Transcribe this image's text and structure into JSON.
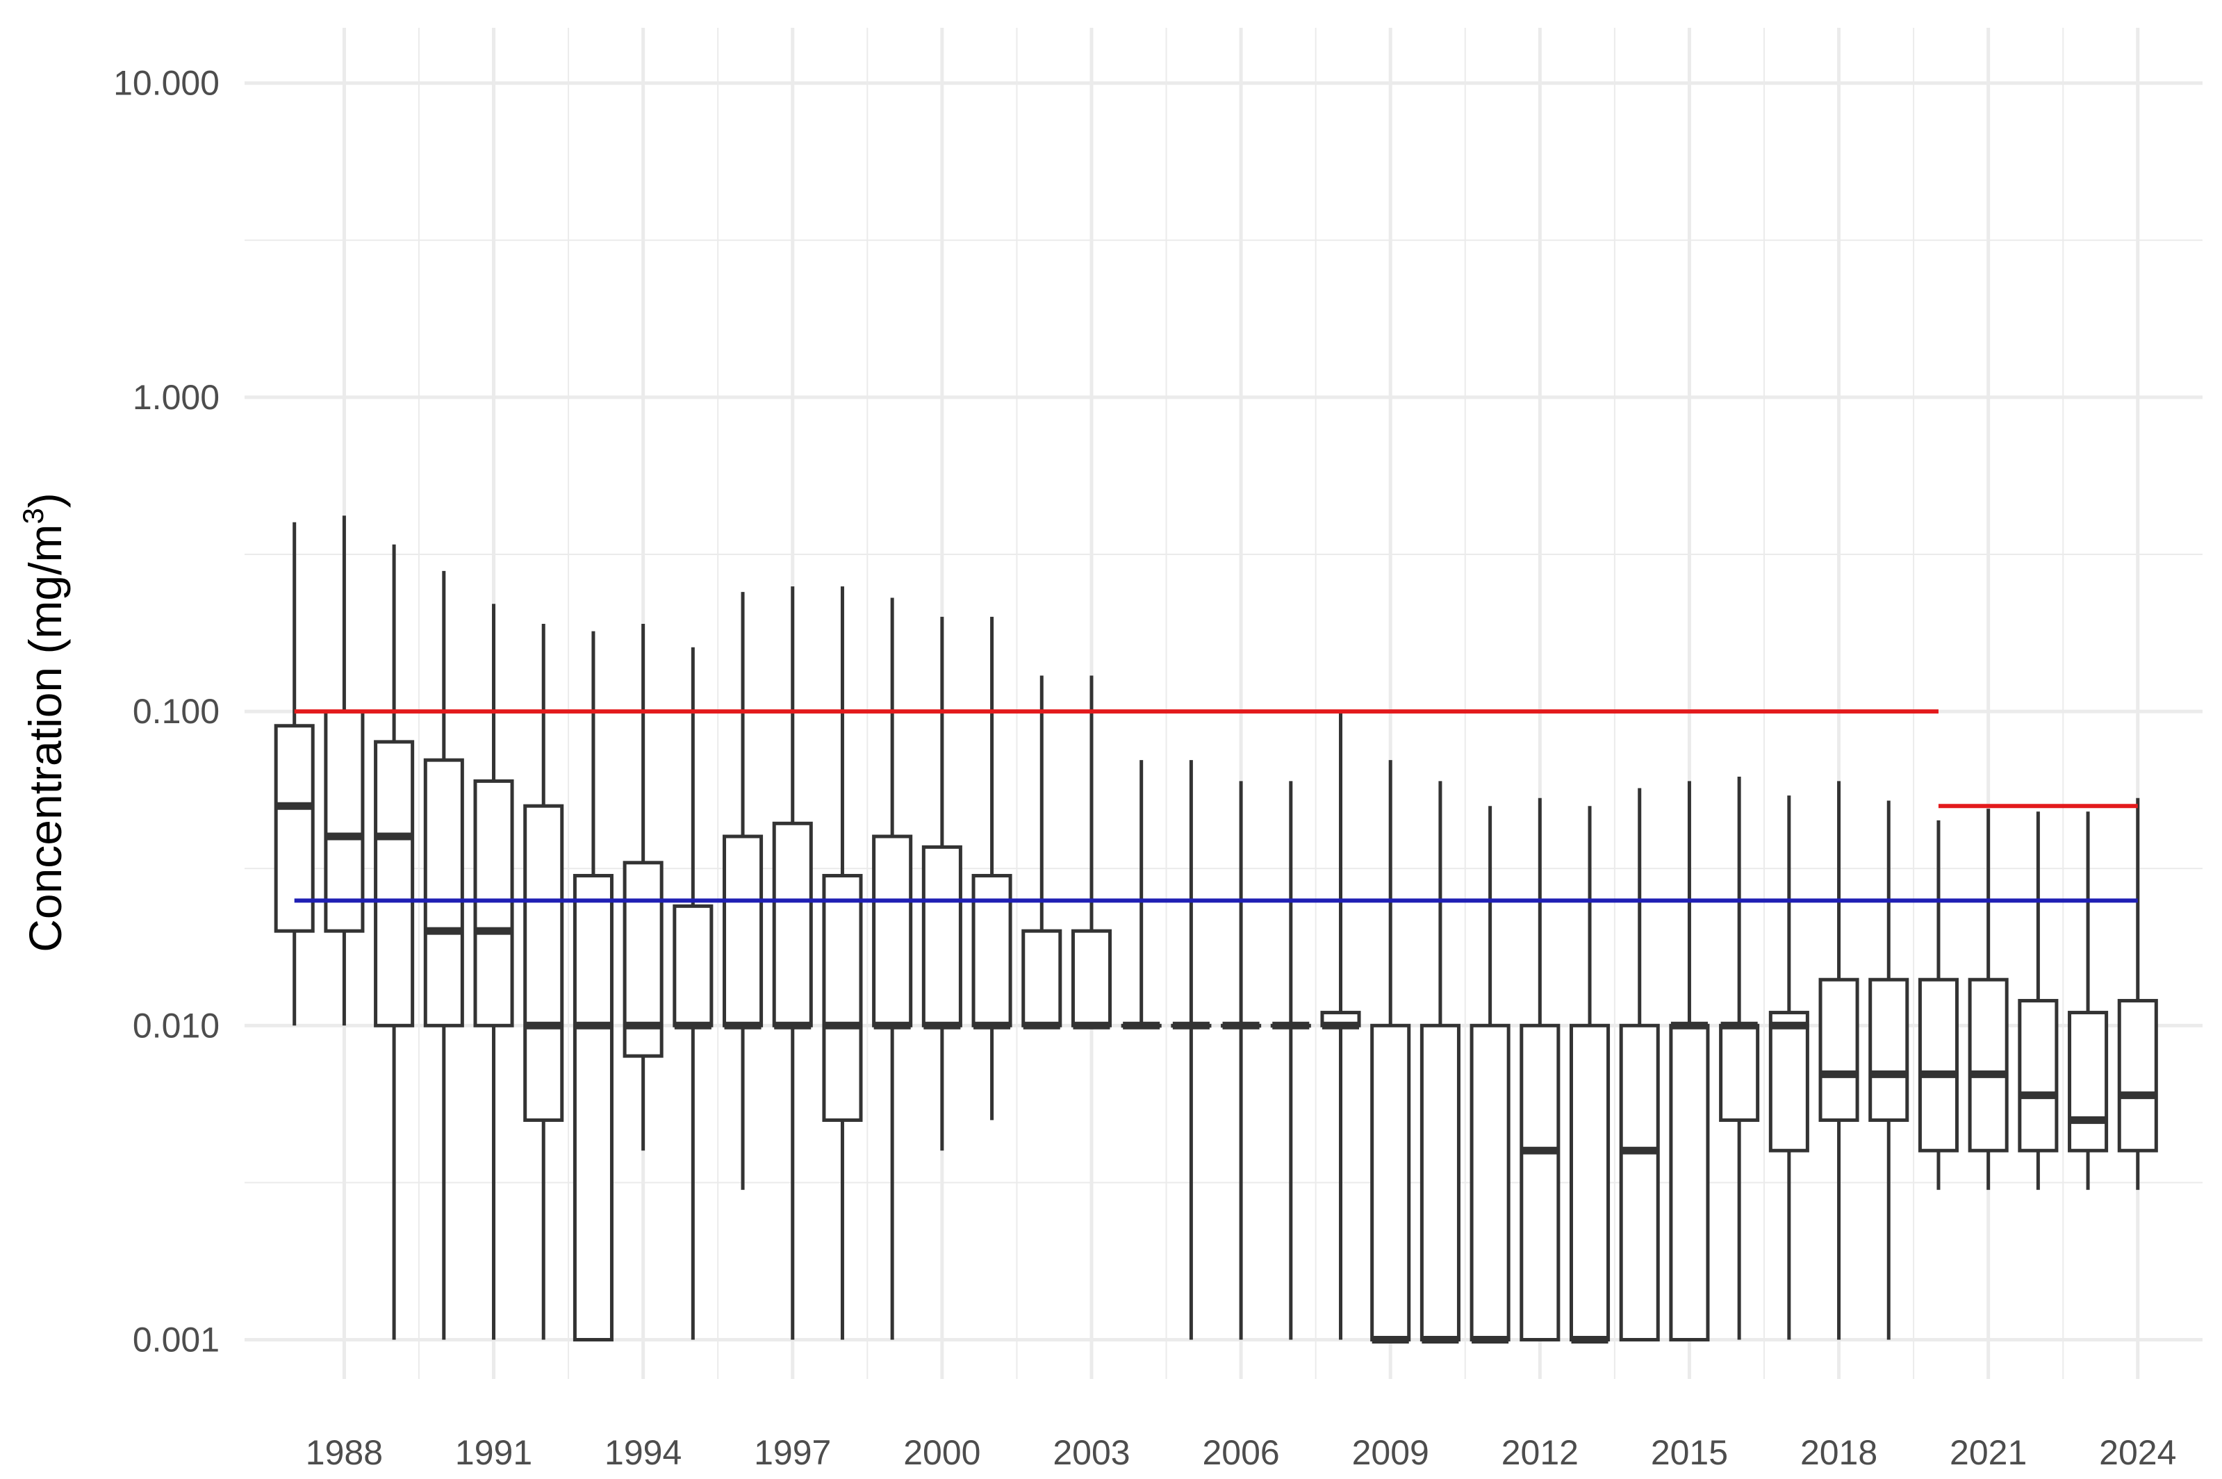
{
  "chart_data": {
    "type": "boxplot",
    "title": "",
    "xlabel": "",
    "ylabel": "Concentration (mg/m",
    "ylabel_superscript": "3",
    "ylabel_close": ")",
    "y_scale": "log10",
    "ylim": [
      0.00075,
      15
    ],
    "y_ticks": [
      0.001,
      0.01,
      0.1,
      1,
      10
    ],
    "y_tick_labels": [
      "0.001",
      "0.010",
      "0.100",
      "1.000",
      "10.000"
    ],
    "xlim": [
      1986.0,
      2025.3
    ],
    "x_ticks": [
      1988,
      1991,
      1994,
      1997,
      2000,
      2003,
      2006,
      2009,
      2012,
      2015,
      2018,
      2021,
      2024
    ],
    "x_tick_labels": [
      "1988",
      "1991",
      "1994",
      "1997",
      "2000",
      "2003",
      "2006",
      "2009",
      "2012",
      "2015",
      "2018",
      "2021",
      "2024"
    ],
    "grid": true,
    "legend": "none",
    "colors": {
      "box": "#333333",
      "grid": "#ebebeb",
      "red_line": "#e31a1c",
      "blue_line": "#1f1fb4",
      "background": "#ffffff"
    },
    "boxes": [
      {
        "year": 1987,
        "min": 0.01,
        "q1": 0.02,
        "median": 0.05,
        "q3": 0.09,
        "max": 0.4
      },
      {
        "year": 1988,
        "min": 0.01,
        "q1": 0.02,
        "median": 0.04,
        "q3": 0.1,
        "max": 0.42
      },
      {
        "year": 1989,
        "min": 0.001,
        "q1": 0.01,
        "median": 0.04,
        "q3": 0.08,
        "max": 0.34
      },
      {
        "year": 1990,
        "min": 0.001,
        "q1": 0.01,
        "median": 0.02,
        "q3": 0.07,
        "max": 0.28
      },
      {
        "year": 1991,
        "min": 0.001,
        "q1": 0.01,
        "median": 0.02,
        "q3": 0.06,
        "max": 0.22
      },
      {
        "year": 1992,
        "min": 0.001,
        "q1": 0.005,
        "median": 0.01,
        "q3": 0.05,
        "max": 0.19
      },
      {
        "year": 1993,
        "min": 0.001,
        "q1": 0.001,
        "median": 0.01,
        "q3": 0.03,
        "max": 0.18
      },
      {
        "year": 1994,
        "min": 0.004,
        "q1": 0.008,
        "median": 0.01,
        "q3": 0.033,
        "max": 0.19
      },
      {
        "year": 1995,
        "min": 0.001,
        "q1": 0.01,
        "median": 0.01,
        "q3": 0.024,
        "max": 0.16
      },
      {
        "year": 1996,
        "min": 0.003,
        "q1": 0.01,
        "median": 0.01,
        "q3": 0.04,
        "max": 0.24
      },
      {
        "year": 1997,
        "min": 0.001,
        "q1": 0.01,
        "median": 0.01,
        "q3": 0.044,
        "max": 0.25
      },
      {
        "year": 1998,
        "min": 0.001,
        "q1": 0.005,
        "median": 0.01,
        "q3": 0.03,
        "max": 0.25
      },
      {
        "year": 1999,
        "min": 0.001,
        "q1": 0.01,
        "median": 0.01,
        "q3": 0.04,
        "max": 0.23
      },
      {
        "year": 2000,
        "min": 0.004,
        "q1": 0.01,
        "median": 0.01,
        "q3": 0.037,
        "max": 0.2
      },
      {
        "year": 2001,
        "min": 0.005,
        "q1": 0.01,
        "median": 0.01,
        "q3": 0.03,
        "max": 0.2
      },
      {
        "year": 2002,
        "min": 0.01,
        "q1": 0.01,
        "median": 0.01,
        "q3": 0.02,
        "max": 0.13
      },
      {
        "year": 2003,
        "min": 0.01,
        "q1": 0.01,
        "median": 0.01,
        "q3": 0.02,
        "max": 0.13
      },
      {
        "year": 2004,
        "min": 0.01,
        "q1": 0.01,
        "median": 0.01,
        "q3": 0.01,
        "max": 0.07
      },
      {
        "year": 2005,
        "min": 0.001,
        "q1": 0.01,
        "median": 0.01,
        "q3": 0.01,
        "max": 0.07
      },
      {
        "year": 2006,
        "min": 0.001,
        "q1": 0.01,
        "median": 0.01,
        "q3": 0.01,
        "max": 0.06
      },
      {
        "year": 2007,
        "min": 0.001,
        "q1": 0.01,
        "median": 0.01,
        "q3": 0.01,
        "max": 0.06
      },
      {
        "year": 2008,
        "min": 0.001,
        "q1": 0.01,
        "median": 0.01,
        "q3": 0.011,
        "max": 0.1
      },
      {
        "year": 2009,
        "min": 0.001,
        "q1": 0.001,
        "median": 0.001,
        "q3": 0.01,
        "max": 0.07
      },
      {
        "year": 2010,
        "min": 0.001,
        "q1": 0.001,
        "median": 0.001,
        "q3": 0.01,
        "max": 0.06
      },
      {
        "year": 2011,
        "min": 0.001,
        "q1": 0.001,
        "median": 0.001,
        "q3": 0.01,
        "max": 0.05
      },
      {
        "year": 2012,
        "min": 0.001,
        "q1": 0.001,
        "median": 0.004,
        "q3": 0.01,
        "max": 0.053
      },
      {
        "year": 2013,
        "min": 0.001,
        "q1": 0.001,
        "median": 0.001,
        "q3": 0.01,
        "max": 0.05
      },
      {
        "year": 2014,
        "min": 0.001,
        "q1": 0.001,
        "median": 0.004,
        "q3": 0.01,
        "max": 0.057
      },
      {
        "year": 2015,
        "min": 0.001,
        "q1": 0.001,
        "median": 0.01,
        "q3": 0.01,
        "max": 0.06
      },
      {
        "year": 2016,
        "min": 0.001,
        "q1": 0.005,
        "median": 0.01,
        "q3": 0.01,
        "max": 0.062
      },
      {
        "year": 2017,
        "min": 0.001,
        "q1": 0.004,
        "median": 0.01,
        "q3": 0.011,
        "max": 0.054
      },
      {
        "year": 2018,
        "min": 0.001,
        "q1": 0.005,
        "median": 0.007,
        "q3": 0.014,
        "max": 0.06
      },
      {
        "year": 2019,
        "min": 0.001,
        "q1": 0.005,
        "median": 0.007,
        "q3": 0.014,
        "max": 0.052
      },
      {
        "year": 2020,
        "min": 0.003,
        "q1": 0.004,
        "median": 0.007,
        "q3": 0.014,
        "max": 0.045
      },
      {
        "year": 2021,
        "min": 0.003,
        "q1": 0.004,
        "median": 0.007,
        "q3": 0.014,
        "max": 0.049
      },
      {
        "year": 2022,
        "min": 0.003,
        "q1": 0.004,
        "median": 0.006,
        "q3": 0.012,
        "max": 0.048
      },
      {
        "year": 2023,
        "min": 0.003,
        "q1": 0.004,
        "median": 0.005,
        "q3": 0.011,
        "max": 0.048
      },
      {
        "year": 2024,
        "min": 0.003,
        "q1": 0.004,
        "median": 0.006,
        "q3": 0.012,
        "max": 0.053
      }
    ],
    "reference_lines": [
      {
        "color": "red",
        "y": 0.1,
        "x_from": 1987,
        "x_to": 2020
      },
      {
        "color": "red",
        "y": 0.05,
        "x_from": 2020,
        "x_to": 2024
      },
      {
        "color": "blue",
        "y": 0.025,
        "x_from": 1987,
        "x_to": 2024
      }
    ]
  }
}
